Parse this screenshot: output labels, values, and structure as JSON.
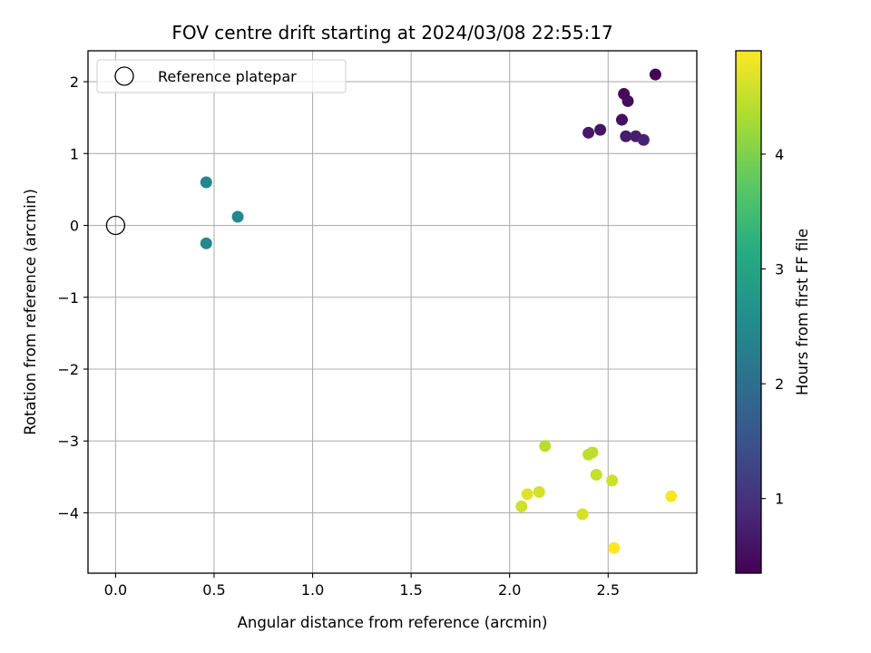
{
  "chart_data": {
    "type": "scatter",
    "title": "FOV centre drift starting at 2024/03/08 22:55:17",
    "xlabel": "Angular distance from reference (arcmin)",
    "ylabel": "Rotation from reference (arcmin)",
    "xlim": [
      -0.14,
      2.95
    ],
    "ylim": [
      -4.84,
      2.43
    ],
    "xticks": [
      0.0,
      0.5,
      1.0,
      1.5,
      2.0,
      2.5
    ],
    "xtick_labels": [
      "0.0",
      "0.5",
      "1.0",
      "1.5",
      "2.0",
      "2.5"
    ],
    "yticks": [
      2,
      1,
      0,
      -1,
      -2,
      -3,
      -4
    ],
    "ytick_labels": [
      "2",
      "1",
      "0",
      "−1",
      "−2",
      "−3",
      "−4"
    ],
    "grid": true,
    "legend": {
      "position": "top-left",
      "entries": [
        "Reference platepar"
      ]
    },
    "reference_point": {
      "x": 0.0,
      "y": 0.0,
      "label": "Reference platepar"
    },
    "colorbar": {
      "label": "Hours from first FF file",
      "colormap": "viridis",
      "range": [
        0.35,
        4.9
      ],
      "ticks": [
        1,
        2,
        3,
        4
      ],
      "tick_labels": [
        "1",
        "2",
        "3",
        "4"
      ]
    },
    "series": [
      {
        "points": [
          {
            "x": 2.74,
            "y": 2.1,
            "hours": 0.4
          },
          {
            "x": 2.58,
            "y": 1.83,
            "hours": 0.45
          },
          {
            "x": 2.6,
            "y": 1.73,
            "hours": 0.5
          },
          {
            "x": 2.57,
            "y": 1.47,
            "hours": 0.55
          },
          {
            "x": 2.46,
            "y": 1.33,
            "hours": 0.6
          },
          {
            "x": 2.4,
            "y": 1.29,
            "hours": 0.65
          },
          {
            "x": 2.59,
            "y": 1.24,
            "hours": 0.7
          },
          {
            "x": 2.64,
            "y": 1.24,
            "hours": 0.75
          },
          {
            "x": 2.68,
            "y": 1.19,
            "hours": 0.8
          },
          {
            "x": 0.46,
            "y": 0.6,
            "hours": 2.45
          },
          {
            "x": 0.62,
            "y": 0.12,
            "hours": 2.45
          },
          {
            "x": 0.46,
            "y": -0.25,
            "hours": 2.45
          },
          {
            "x": 2.18,
            "y": -3.07,
            "hours": 4.4
          },
          {
            "x": 2.42,
            "y": -3.16,
            "hours": 4.45
          },
          {
            "x": 2.4,
            "y": -3.19,
            "hours": 4.45
          },
          {
            "x": 2.44,
            "y": -3.47,
            "hours": 4.5
          },
          {
            "x": 2.52,
            "y": -3.55,
            "hours": 4.55
          },
          {
            "x": 2.15,
            "y": -3.71,
            "hours": 4.6
          },
          {
            "x": 2.09,
            "y": -3.74,
            "hours": 4.7
          },
          {
            "x": 2.06,
            "y": -3.91,
            "hours": 4.55
          },
          {
            "x": 2.37,
            "y": -4.02,
            "hours": 4.6
          },
          {
            "x": 2.82,
            "y": -3.77,
            "hours": 4.85
          },
          {
            "x": 2.53,
            "y": -4.49,
            "hours": 4.9
          }
        ]
      }
    ]
  }
}
